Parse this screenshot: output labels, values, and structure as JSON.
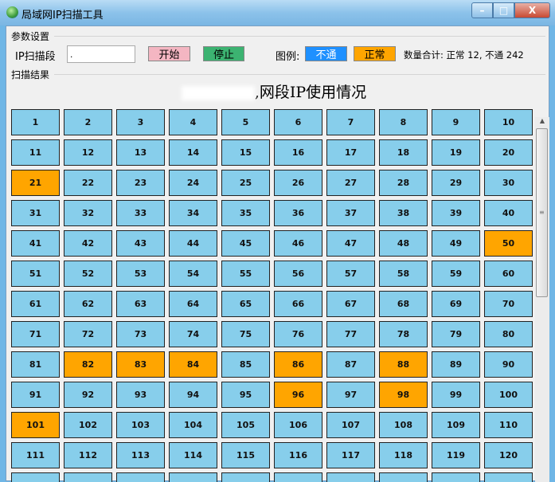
{
  "window": {
    "title": "局域网IP扫描工具",
    "min": "–",
    "max": "□",
    "close": "X"
  },
  "params": {
    "group_label": "参数设置",
    "ip_label": "IP扫描段",
    "ip_value": ".",
    "start_label": "开始",
    "stop_label": "停止",
    "legend_label": "图例:",
    "legend_down": "不通",
    "legend_up": "正常",
    "count_text": "数量合计: 正常 12, 不通 242"
  },
  "colors": {
    "down": "#87ceeb",
    "up": "#ffa500",
    "start_btn": "#f4b6c2",
    "stop_btn": "#3cb371",
    "legend_down": "#1e90ff"
  },
  "results": {
    "group_label": "扫描结果",
    "heading": ",网段IP使用情况"
  },
  "grid": {
    "ips": [
      1,
      2,
      3,
      4,
      5,
      6,
      7,
      8,
      9,
      10,
      11,
      12,
      13,
      14,
      15,
      16,
      17,
      18,
      19,
      20,
      21,
      22,
      23,
      24,
      25,
      26,
      27,
      28,
      29,
      30,
      31,
      32,
      33,
      34,
      35,
      36,
      37,
      38,
      39,
      40,
      41,
      42,
      43,
      44,
      45,
      46,
      47,
      48,
      49,
      50,
      51,
      52,
      53,
      54,
      55,
      56,
      57,
      58,
      59,
      60,
      61,
      62,
      63,
      64,
      65,
      66,
      67,
      68,
      69,
      70,
      71,
      72,
      73,
      74,
      75,
      76,
      77,
      78,
      79,
      80,
      81,
      82,
      83,
      84,
      85,
      86,
      87,
      88,
      89,
      90,
      91,
      92,
      93,
      94,
      95,
      96,
      97,
      98,
      99,
      100,
      101,
      102,
      103,
      104,
      105,
      106,
      107,
      108,
      109,
      110,
      111,
      112,
      113,
      114,
      115,
      116,
      117,
      118,
      119,
      120
    ],
    "normal": [
      21,
      50,
      82,
      83,
      84,
      86,
      88,
      96,
      98,
      101
    ]
  }
}
